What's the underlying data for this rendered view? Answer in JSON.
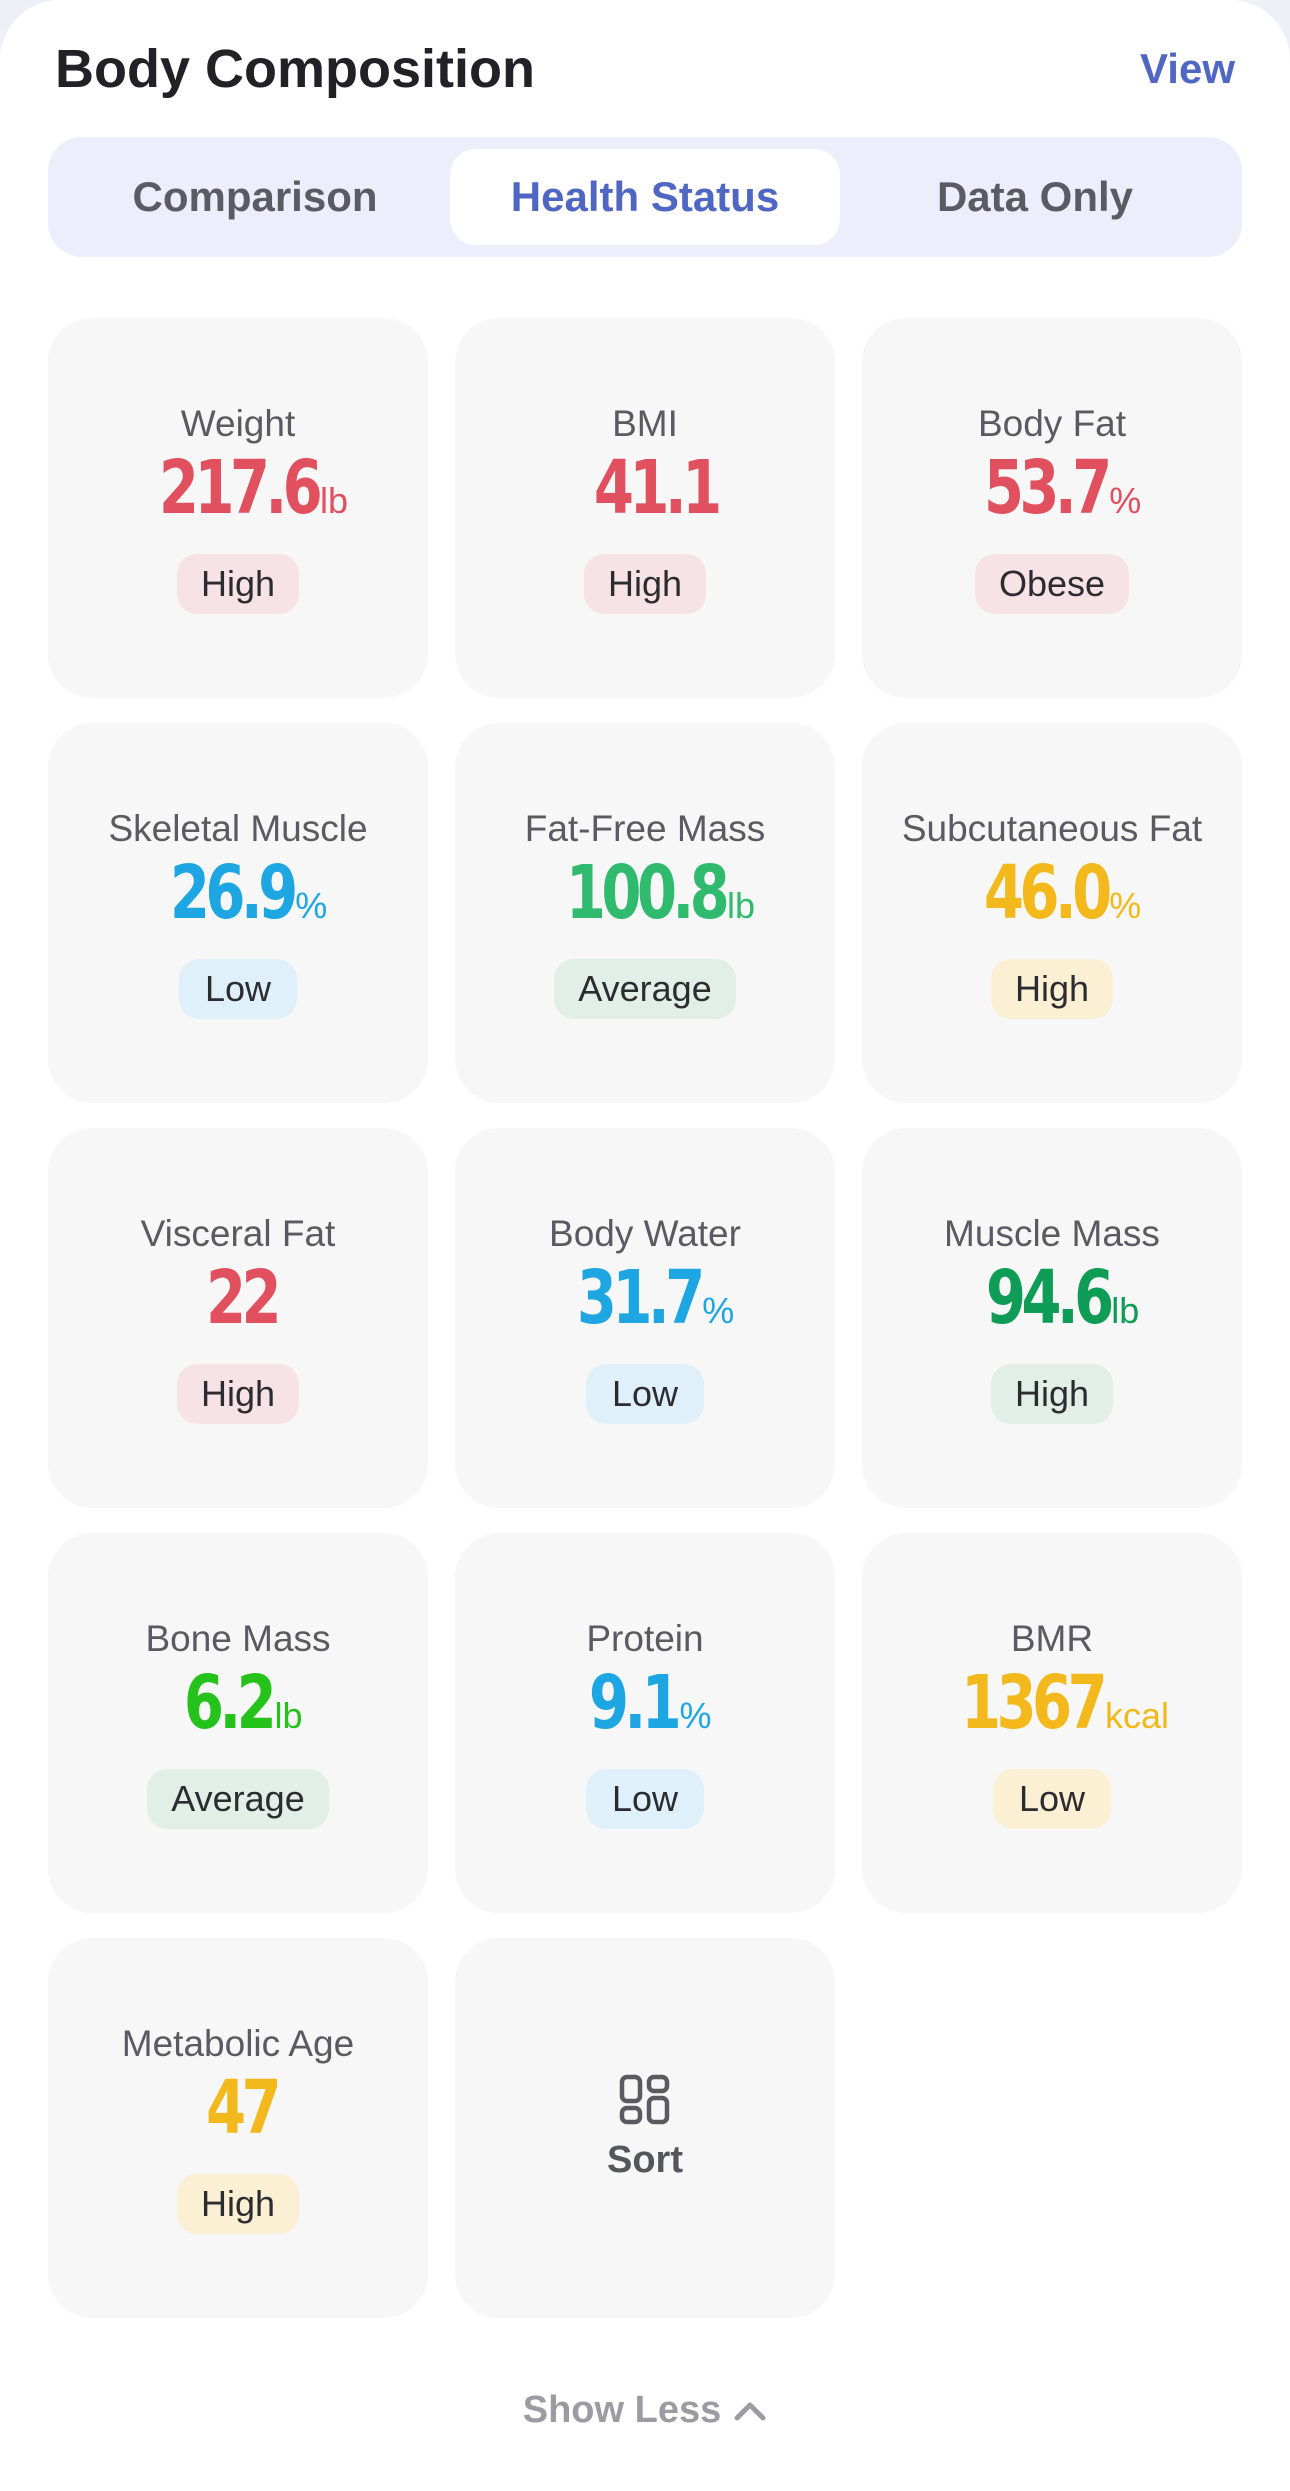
{
  "header": {
    "title": "Body Composition",
    "view_label": "View"
  },
  "tabs": [
    {
      "label": "Comparison",
      "active": false
    },
    {
      "label": "Health Status",
      "active": true
    },
    {
      "label": "Data Only",
      "active": false
    }
  ],
  "colors": {
    "red": "#e0505f",
    "blue": "#1ea6e2",
    "green": "#2fba6e",
    "yellow": "#f2b81c",
    "dark_green": "#0f9c57",
    "lime": "#25c21c",
    "badge_red": "#f7e3e6",
    "badge_blue": "#e0f0fa",
    "badge_green": "#e1efe7",
    "badge_yellow": "#fbf0d3"
  },
  "metrics": [
    {
      "label": "Weight",
      "value": "217.6",
      "unit": "lb",
      "status": "High",
      "color": "#e0505f",
      "badge_bg": "#f7e3e6"
    },
    {
      "label": "BMI",
      "value": "41.1",
      "unit": "",
      "status": "High",
      "color": "#e0505f",
      "badge_bg": "#f7e3e6"
    },
    {
      "label": "Body Fat",
      "value": "53.7",
      "unit": "%",
      "status": "Obese",
      "color": "#e0505f",
      "badge_bg": "#f7e3e6"
    },
    {
      "label": "Skeletal Muscle",
      "value": "26.9",
      "unit": "%",
      "status": "Low",
      "color": "#1ea6e2",
      "badge_bg": "#e0f0fa"
    },
    {
      "label": "Fat-Free Mass",
      "value": "100.8",
      "unit": "lb",
      "status": "Average",
      "color": "#2fba6e",
      "badge_bg": "#e1efe7"
    },
    {
      "label": "Subcutaneous Fat",
      "value": "46.0",
      "unit": "%",
      "status": "High",
      "color": "#f2b81c",
      "badge_bg": "#fbf0d3"
    },
    {
      "label": "Visceral Fat",
      "value": "22",
      "unit": "",
      "status": "High",
      "color": "#e0505f",
      "badge_bg": "#f7e3e6"
    },
    {
      "label": "Body Water",
      "value": "31.7",
      "unit": "%",
      "status": "Low",
      "color": "#1ea6e2",
      "badge_bg": "#e0f0fa"
    },
    {
      "label": "Muscle Mass",
      "value": "94.6",
      "unit": "lb",
      "status": "High",
      "color": "#0f9c57",
      "badge_bg": "#e1efe7"
    },
    {
      "label": "Bone Mass",
      "value": "6.2",
      "unit": "lb",
      "status": "Average",
      "color": "#25c21c",
      "badge_bg": "#e1efe7"
    },
    {
      "label": "Protein",
      "value": "9.1",
      "unit": "%",
      "status": "Low",
      "color": "#1ea6e2",
      "badge_bg": "#e0f0fa"
    },
    {
      "label": "BMR",
      "value": "1367",
      "unit": "kcal",
      "status": "Low",
      "color": "#f2b81c",
      "badge_bg": "#fbf0d3"
    },
    {
      "label": "Metabolic Age",
      "value": "47",
      "unit": "",
      "status": "High",
      "color": "#f2b81c",
      "badge_bg": "#fbf0d3"
    }
  ],
  "sort_card": {
    "label": "Sort",
    "icon": "grid-sort-icon"
  },
  "footer": {
    "show_less_label": "Show Less",
    "icon": "chevron-up-icon"
  }
}
